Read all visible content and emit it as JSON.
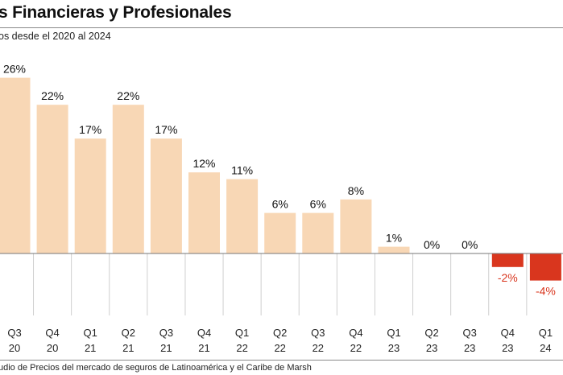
{
  "header": {
    "title": "s Financieras y Profesionales",
    "subtitle": "os desde el 2020 al 2024"
  },
  "footer": {
    "source": "udio de Precios del mercado de seguros de Latinoamérica y el Caribe de Marsh"
  },
  "colors": {
    "positive_bar": "#f8d7b5",
    "negative_bar": "#d9361e",
    "negative_label": "#d9361e",
    "label": "#111111",
    "axis": "#777777",
    "gridline": "#cfcfcf"
  },
  "chart_data": {
    "type": "bar",
    "title": "s Financieras y Profesionales",
    "subtitle": "os desde el 2020 al 2024",
    "xlabel": "",
    "ylabel": "",
    "categories": [
      {
        "q": "Q3",
        "y": "20"
      },
      {
        "q": "Q4",
        "y": "20"
      },
      {
        "q": "Q1",
        "y": "21"
      },
      {
        "q": "Q2",
        "y": "21"
      },
      {
        "q": "Q3",
        "y": "21"
      },
      {
        "q": "Q4",
        "y": "21"
      },
      {
        "q": "Q1",
        "y": "22"
      },
      {
        "q": "Q2",
        "y": "22"
      },
      {
        "q": "Q3",
        "y": "22"
      },
      {
        "q": "Q4",
        "y": "22"
      },
      {
        "q": "Q1",
        "y": "23"
      },
      {
        "q": "Q2",
        "y": "23"
      },
      {
        "q": "Q3",
        "y": "23"
      },
      {
        "q": "Q4",
        "y": "23"
      },
      {
        "q": "Q1",
        "y": "24"
      }
    ],
    "values": [
      26,
      22,
      17,
      22,
      17,
      12,
      11,
      6,
      6,
      8,
      1,
      0,
      0,
      -2,
      -4
    ],
    "labels": [
      "26%",
      "22%",
      "17%",
      "22%",
      "17%",
      "12%",
      "11%",
      "6%",
      "6%",
      "8%",
      "1%",
      "0%",
      "0%",
      "-2%",
      "-4%"
    ],
    "ylim": [
      -4,
      26
    ],
    "grid": false,
    "legend": "none"
  }
}
